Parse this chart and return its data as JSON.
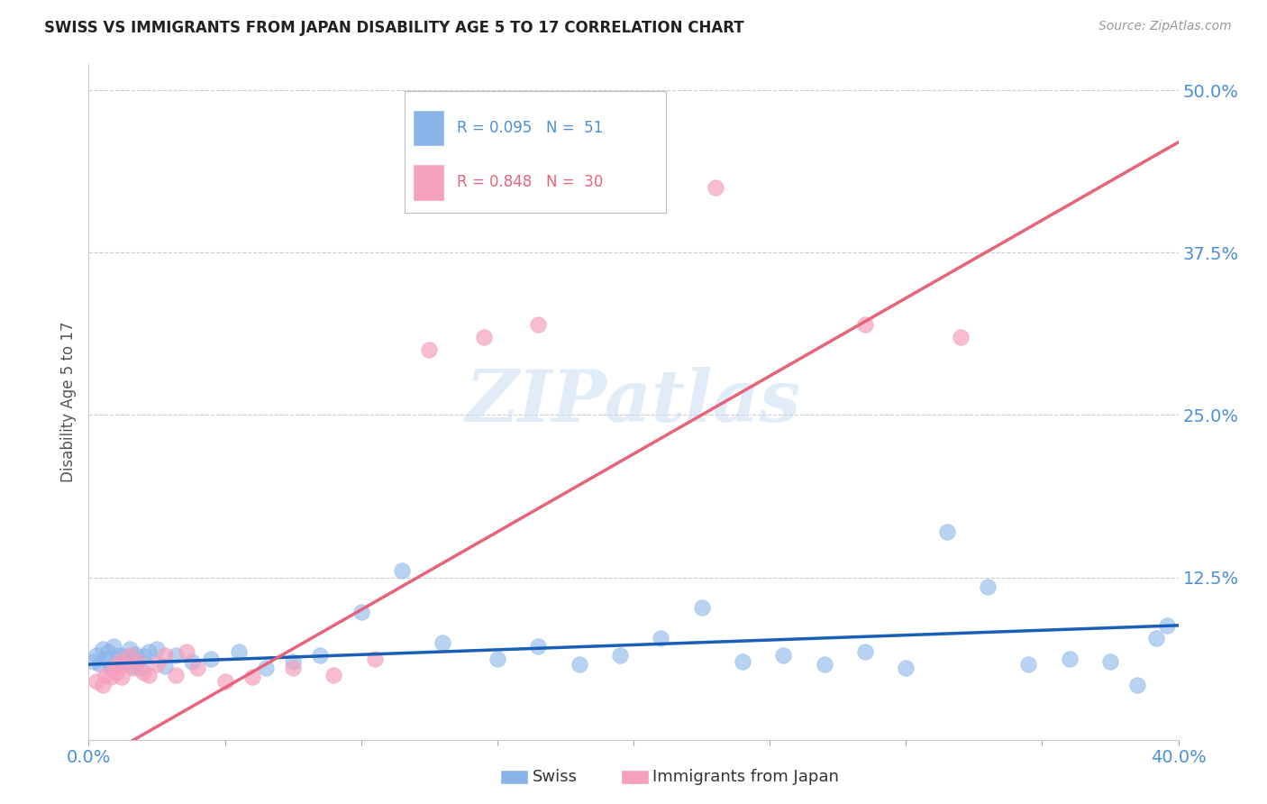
{
  "title": "SWISS VS IMMIGRANTS FROM JAPAN DISABILITY AGE 5 TO 17 CORRELATION CHART",
  "source": "Source: ZipAtlas.com",
  "ylabel": "Disability Age 5 to 17",
  "xlim": [
    0.0,
    0.4
  ],
  "ylim": [
    0.0,
    0.52
  ],
  "background_color": "#ffffff",
  "grid_color": "#cccccc",
  "watermark": "ZIPatlas",
  "swiss_color": "#8ab4e8",
  "japan_color": "#f4a0be",
  "swiss_line_color": "#1a5eb8",
  "japan_line_color": "#e8637a",
  "swiss_R": 0.095,
  "swiss_N": 51,
  "japan_R": 0.848,
  "japan_N": 30,
  "tick_label_color": "#4a90d9",
  "swiss_x": [
    0.002,
    0.003,
    0.004,
    0.005,
    0.006,
    0.007,
    0.008,
    0.009,
    0.01,
    0.011,
    0.012,
    0.013,
    0.014,
    0.015,
    0.016,
    0.017,
    0.018,
    0.019,
    0.02,
    0.022,
    0.025,
    0.028,
    0.032,
    0.038,
    0.045,
    0.055,
    0.065,
    0.075,
    0.085,
    0.1,
    0.115,
    0.13,
    0.15,
    0.165,
    0.18,
    0.195,
    0.21,
    0.225,
    0.24,
    0.255,
    0.27,
    0.285,
    0.3,
    0.315,
    0.33,
    0.345,
    0.36,
    0.375,
    0.385,
    0.392,
    0.396
  ],
  "swiss_y": [
    0.06,
    0.065,
    0.058,
    0.07,
    0.062,
    0.068,
    0.055,
    0.072,
    0.06,
    0.065,
    0.058,
    0.064,
    0.062,
    0.07,
    0.057,
    0.066,
    0.06,
    0.055,
    0.064,
    0.068,
    0.07,
    0.057,
    0.065,
    0.06,
    0.062,
    0.068,
    0.055,
    0.06,
    0.065,
    0.098,
    0.13,
    0.075,
    0.062,
    0.072,
    0.058,
    0.065,
    0.078,
    0.102,
    0.06,
    0.065,
    0.058,
    0.068,
    0.055,
    0.16,
    0.118,
    0.058,
    0.062,
    0.06,
    0.042,
    0.078,
    0.088
  ],
  "japan_x": [
    0.003,
    0.005,
    0.006,
    0.008,
    0.009,
    0.01,
    0.011,
    0.012,
    0.013,
    0.015,
    0.016,
    0.018,
    0.02,
    0.022,
    0.025,
    0.028,
    0.032,
    0.036,
    0.04,
    0.05,
    0.06,
    0.075,
    0.09,
    0.105,
    0.125,
    0.145,
    0.165,
    0.23,
    0.285,
    0.32
  ],
  "japan_y": [
    0.045,
    0.042,
    0.05,
    0.048,
    0.055,
    0.052,
    0.06,
    0.048,
    0.058,
    0.065,
    0.055,
    0.06,
    0.052,
    0.05,
    0.058,
    0.065,
    0.05,
    0.068,
    0.055,
    0.045,
    0.048,
    0.055,
    0.05,
    0.062,
    0.3,
    0.31,
    0.32,
    0.425,
    0.32,
    0.31
  ]
}
